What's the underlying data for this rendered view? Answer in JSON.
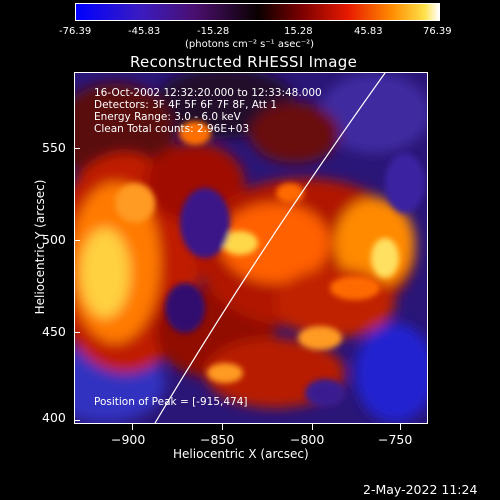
{
  "colorbar": {
    "tick_labels": [
      "-76.39",
      "-45.83",
      "-15.28",
      "15.28",
      "45.83",
      "76.39"
    ],
    "units": "(photons cm⁻² s⁻¹ asec⁻²)"
  },
  "title": "Reconstructed RHESSI Image",
  "info": {
    "time_range": "16-Oct-2002 12:32:20.000 to 12:33:48.000",
    "detectors": "Detectors: 3F 4F 5F 6F 7F 8F, Att 1",
    "energy": "Energy Range: 3.0 - 6.0 keV",
    "clean": "Clean    Total counts: 2.96E+03",
    "peak": "Position of Peak = [-915,474]"
  },
  "axes": {
    "x_label": "Heliocentric X (arcsec)",
    "y_label": "Heliocentric Y (arcsec)",
    "x_ticks": [
      "−900",
      "−850",
      "−800",
      "−750"
    ],
    "y_ticks": [
      "550",
      "500",
      "450",
      "400"
    ]
  },
  "footer": {
    "date": "2-May-2022 11:24"
  }
}
